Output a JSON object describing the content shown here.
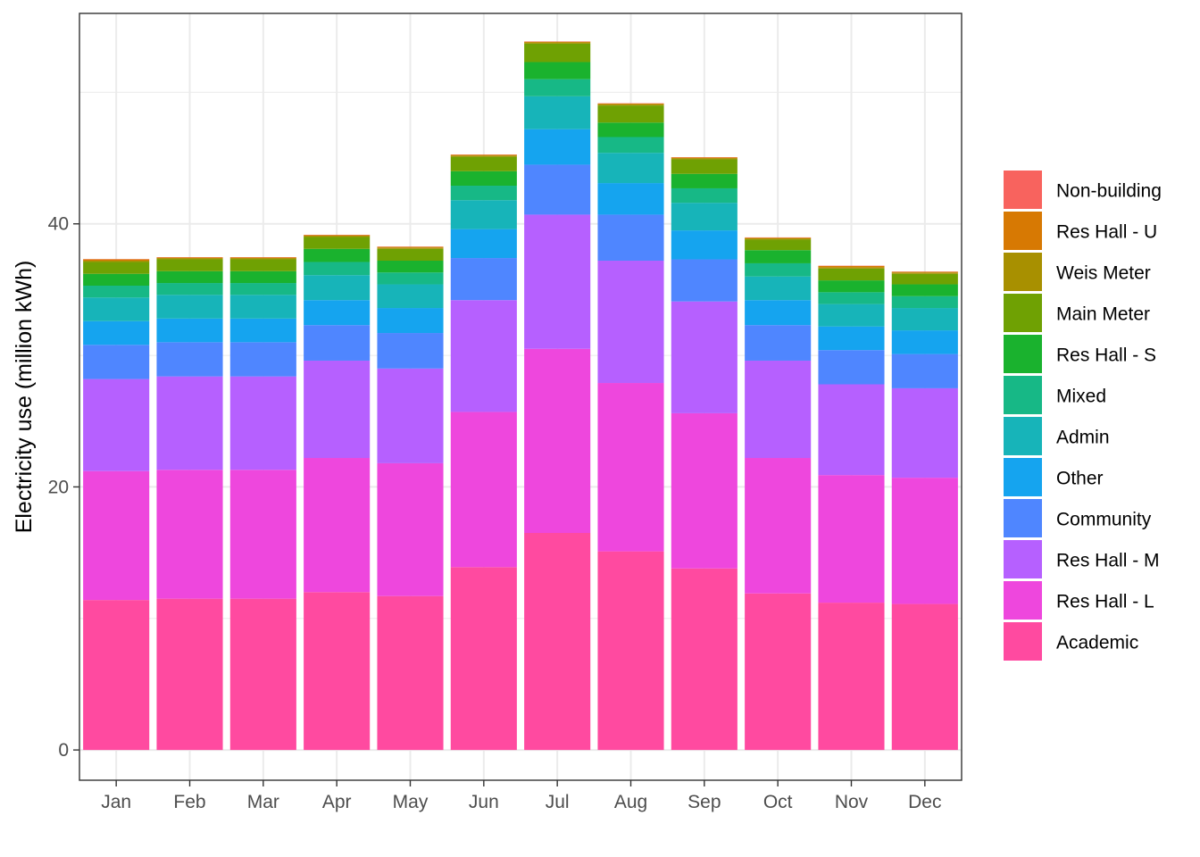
{
  "chart_data": {
    "type": "bar",
    "stacked": true,
    "xlabel": "",
    "ylabel": "Electricity use (million kWh)",
    "ylim": [
      -2.3,
      56
    ],
    "yticks": [
      0,
      20,
      40
    ],
    "grid": true,
    "legend_position": "right",
    "categories": [
      "Jan",
      "Feb",
      "Mar",
      "Apr",
      "May",
      "Jun",
      "Jul",
      "Aug",
      "Sep",
      "Oct",
      "Nov",
      "Dec"
    ],
    "series": [
      {
        "name": "Academic",
        "color": "#FF4AA0",
        "values": [
          11.4,
          11.5,
          11.5,
          12.0,
          11.7,
          13.9,
          16.5,
          15.1,
          13.8,
          11.9,
          11.2,
          11.1
        ]
      },
      {
        "name": "Res Hall - L",
        "color": "#EE47DD",
        "values": [
          9.8,
          9.8,
          9.8,
          10.2,
          10.1,
          11.8,
          14.0,
          12.8,
          11.8,
          10.3,
          9.7,
          9.6
        ]
      },
      {
        "name": "Res Hall - M",
        "color": "#B660FF",
        "values": [
          7.0,
          7.1,
          7.1,
          7.4,
          7.2,
          8.5,
          10.2,
          9.3,
          8.5,
          7.4,
          6.9,
          6.8
        ]
      },
      {
        "name": "Community",
        "color": "#4F86FF",
        "values": [
          2.6,
          2.6,
          2.6,
          2.7,
          2.7,
          3.2,
          3.8,
          3.5,
          3.2,
          2.7,
          2.6,
          2.6
        ]
      },
      {
        "name": "Other",
        "color": "#15A4EF",
        "values": [
          1.8,
          1.8,
          1.8,
          1.9,
          1.9,
          2.2,
          2.7,
          2.4,
          2.2,
          1.9,
          1.8,
          1.8
        ]
      },
      {
        "name": "Admin",
        "color": "#17B4B9",
        "values": [
          1.8,
          1.8,
          1.8,
          1.9,
          1.8,
          2.2,
          2.5,
          2.3,
          2.1,
          1.8,
          1.7,
          1.7
        ]
      },
      {
        "name": "Mixed",
        "color": "#17B886",
        "values": [
          0.9,
          0.9,
          0.9,
          1.0,
          0.9,
          1.1,
          1.3,
          1.2,
          1.1,
          1.0,
          0.9,
          0.9
        ]
      },
      {
        "name": "Res Hall - S",
        "color": "#1AB22E",
        "values": [
          0.9,
          0.9,
          0.9,
          1.0,
          0.9,
          1.1,
          1.3,
          1.1,
          1.1,
          1.0,
          0.9,
          0.9
        ]
      },
      {
        "name": "Main Meter",
        "color": "#6FA103",
        "values": [
          0.9,
          0.9,
          0.9,
          0.9,
          0.9,
          1.1,
          1.4,
          1.3,
          1.1,
          0.8,
          0.9,
          0.8
        ]
      },
      {
        "name": "Weis Meter",
        "color": "#A89000",
        "values": [
          0.1,
          0.1,
          0.1,
          0.1,
          0.1,
          0.1,
          0.1,
          0.1,
          0.1,
          0.1,
          0.1,
          0.1
        ]
      },
      {
        "name": "Res Hall - U",
        "color": "#D77903",
        "values": [
          0.1,
          0.05,
          0.05,
          0.05,
          0.05,
          0.05,
          0.05,
          0.05,
          0.05,
          0.05,
          0.1,
          0.05
        ]
      },
      {
        "name": "Non-building",
        "color": "#F8635E",
        "values": [
          0.02,
          0.02,
          0.02,
          0.02,
          0.02,
          0.02,
          0.02,
          0.02,
          0.02,
          0.02,
          0.02,
          0.02
        ]
      }
    ]
  }
}
